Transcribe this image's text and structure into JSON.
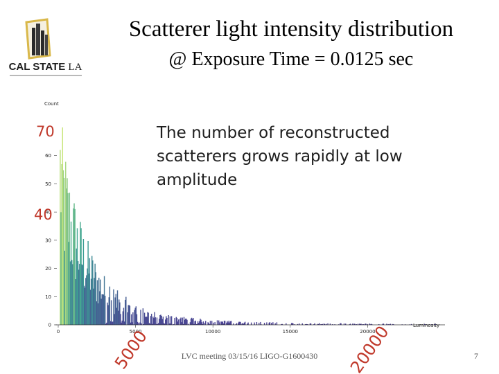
{
  "slide": {
    "title_line1": "Scatterer light intensity distribution",
    "title_line2": "@ Exposure Time = 0.0125 sec",
    "logo_text_main": "CAL STATE",
    "logo_text_la": "LA",
    "annotation": "The number of reconstructed scatterers grows rapidly at low amplitude",
    "footer": "LVC meeting 03/15/16 LIGO-G1600430",
    "page_number": "7",
    "red_marks": [
      "70",
      "40",
      "5000",
      "20000"
    ]
  },
  "colors": {
    "red_mark": "#c0392b",
    "bar_high": "#c8e67a",
    "bar_mid": "#3aa394",
    "bar_low": "#4b3f93"
  },
  "chart_data": {
    "type": "bar",
    "title": "",
    "xlabel": "Luminosity",
    "ylabel": "Count",
    "xlim": [
      0,
      25000
    ],
    "ylim": [
      0,
      70
    ],
    "xticks": [
      0,
      5000,
      10000,
      15000,
      20000
    ],
    "xtick_labels": [
      "0",
      "5000",
      "10000",
      "15000",
      "20000"
    ],
    "yticks": [
      0,
      10,
      20,
      30,
      40,
      50,
      60
    ],
    "ytick_labels": [
      "0",
      "10",
      "20",
      "30",
      "40",
      "50",
      "60"
    ],
    "bin_width": 50,
    "series": [
      {
        "name": "Count",
        "envelope_x": [
          0,
          200,
          400,
          600,
          900,
          1200,
          1600,
          2000,
          2500,
          3000,
          3500,
          4000,
          5000,
          6000,
          7000,
          8000,
          9000,
          10000,
          12000,
          15000,
          20000,
          25000
        ],
        "envelope_y": [
          70,
          62,
          52,
          46,
          40,
          34,
          28,
          23,
          18,
          14,
          11,
          9,
          6,
          4,
          3,
          2.4,
          1.8,
          1.4,
          1.0,
          0.6,
          0.4,
          0.2
        ]
      }
    ]
  }
}
